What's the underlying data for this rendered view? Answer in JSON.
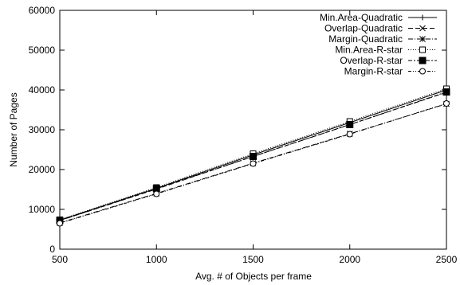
{
  "chart_data": {
    "type": "line",
    "title": "",
    "xlabel": "Avg. # of Objects per frame",
    "ylabel": "Number of Pages",
    "xlim": [
      500,
      2500
    ],
    "ylim": [
      0,
      60000
    ],
    "x_ticks": [
      500,
      1000,
      1500,
      2000,
      2500
    ],
    "y_ticks": [
      0,
      10000,
      20000,
      30000,
      40000,
      50000,
      60000
    ],
    "grid": false,
    "legend_position": "top-right",
    "x": [
      500,
      1000,
      1500,
      2000,
      2500
    ],
    "series": [
      {
        "name": "Min.Area-Quadratic",
        "marker": "plus",
        "dash": "solid",
        "values": [
          7300,
          15300,
          23700,
          31800,
          40000
        ]
      },
      {
        "name": "Overlap-Quadratic",
        "marker": "cross",
        "dash": "dashed",
        "values": [
          7200,
          15100,
          23300,
          31300,
          39400
        ]
      },
      {
        "name": "Margin-Quadratic",
        "marker": "star",
        "dash": "dashdot",
        "values": [
          6600,
          14000,
          21600,
          29000,
          36500
        ]
      },
      {
        "name": "Min.Area-R-star",
        "marker": "square-open",
        "dash": "dotted",
        "values": [
          7400,
          15500,
          24000,
          32100,
          40300
        ]
      },
      {
        "name": "Overlap-R-star",
        "marker": "square-filled",
        "dash": "dashdot2",
        "values": [
          7200,
          15200,
          23300,
          31300,
          39500
        ]
      },
      {
        "name": "Margin-R-star",
        "marker": "circle-open",
        "dash": "dashdot3",
        "values": [
          6500,
          13900,
          21500,
          28900,
          36600
        ]
      }
    ]
  }
}
